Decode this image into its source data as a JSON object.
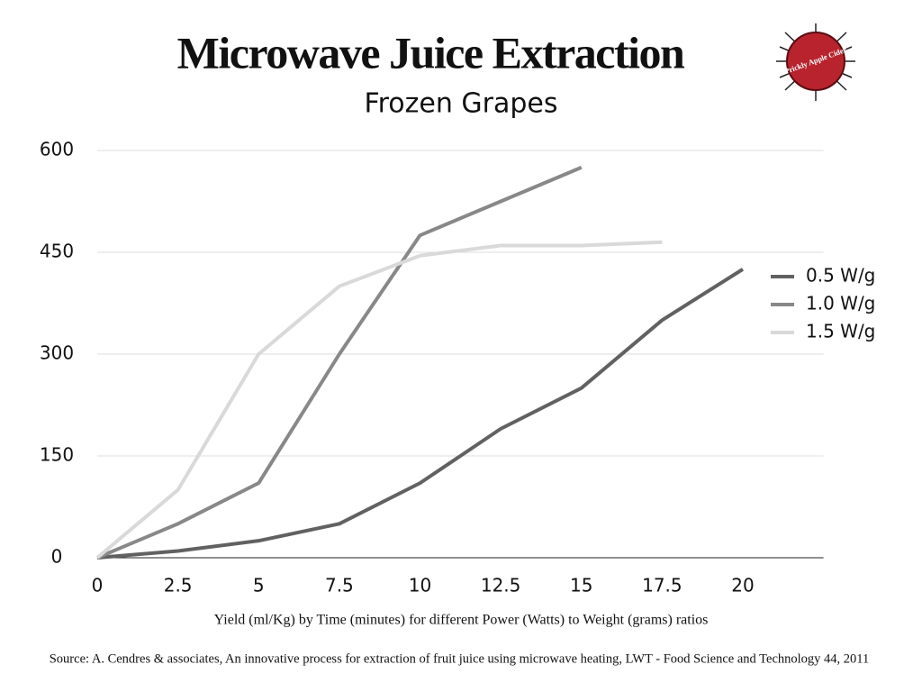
{
  "chart_data": {
    "type": "line",
    "title": "Microwave Juice Extraction",
    "subtitle": "Frozen Grapes",
    "x_label": "Yield (ml/Kg) by Time (minutes) for different Power (Watts) to Weight (grams) ratios",
    "x": [
      0,
      2.5,
      5,
      7.5,
      10,
      12.5,
      15,
      17.5,
      20
    ],
    "series": [
      {
        "name": "0.5 W/g",
        "color": "#616161",
        "values": [
          0,
          10,
          25,
          50,
          110,
          190,
          250,
          350,
          425
        ]
      },
      {
        "name": "1.0 W/g",
        "color": "#888888",
        "values": [
          0,
          50,
          110,
          300,
          475,
          525,
          575,
          null,
          null
        ]
      },
      {
        "name": "1.5 W/g",
        "color": "#d9d9d9",
        "values": [
          0,
          100,
          300,
          400,
          445,
          460,
          460,
          465,
          null
        ]
      }
    ],
    "xlim": [
      0,
      22.5
    ],
    "xticks": [
      0,
      2.5,
      5,
      7.5,
      10,
      12.5,
      15,
      17.5,
      20
    ],
    "ylim": [
      0,
      600
    ],
    "yticks": [
      0,
      150,
      300,
      450,
      600
    ],
    "grid": true,
    "legend": "right"
  },
  "source": "Source:  A. Cendres & associates, An innovative process for extraction of fruit juice using microwave heating, LWT - Food Science and Technology 44, 2011",
  "logo_text": "Prickly Apple Cider"
}
